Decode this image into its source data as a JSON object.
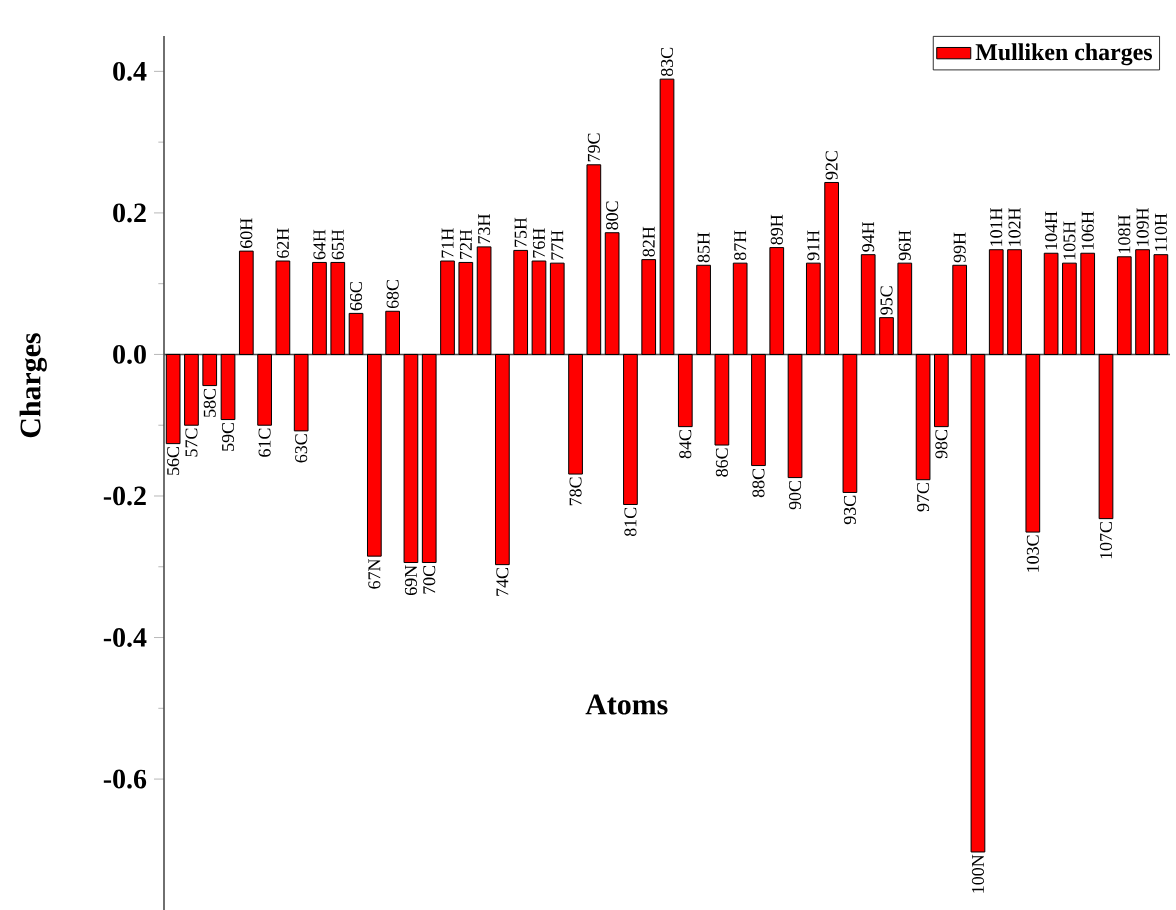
{
  "chart_data": {
    "type": "bar",
    "xlabel": "Atoms",
    "ylabel": "Charges",
    "categories": [
      "56C",
      "57C",
      "58C",
      "59C",
      "60H",
      "61C",
      "62H",
      "63C",
      "64H",
      "65H",
      "66C",
      "67N",
      "68C",
      "69N",
      "70C",
      "71H",
      "72H",
      "73H",
      "74C",
      "75H",
      "76H",
      "77H",
      "78C",
      "79C",
      "80C",
      "81C",
      "82H",
      "83C",
      "84C",
      "85H",
      "86C",
      "87H",
      "88C",
      "89H",
      "90C",
      "91H",
      "92C",
      "93C",
      "94H",
      "95C",
      "96H",
      "97C",
      "98C",
      "99H",
      "100N",
      "101H",
      "102H",
      "103C",
      "104H",
      "105H",
      "106H",
      "107C",
      "108H",
      "109H",
      "110H"
    ],
    "series": [
      {
        "name": "Mulliken charges",
        "color": "#ff0000",
        "values": [
          -0.126,
          -0.1,
          -0.044,
          -0.092,
          0.146,
          -0.1,
          0.132,
          -0.108,
          0.13,
          0.13,
          0.058,
          -0.285,
          0.061,
          -0.294,
          -0.294,
          0.132,
          0.13,
          0.152,
          -0.297,
          0.147,
          0.132,
          0.129,
          -0.169,
          0.268,
          0.172,
          -0.212,
          0.134,
          0.389,
          -0.102,
          0.126,
          -0.128,
          0.129,
          -0.157,
          0.151,
          -0.174,
          0.129,
          0.243,
          -0.195,
          0.141,
          0.052,
          0.129,
          -0.177,
          -0.102,
          0.126,
          -0.703,
          0.148,
          0.148,
          -0.251,
          0.143,
          0.129,
          0.143,
          -0.232,
          0.138,
          0.148,
          0.141
        ]
      }
    ],
    "ylim": [
      -0.785,
      0.45
    ],
    "yticks": [
      -0.6,
      -0.4,
      -0.2,
      {
        "value": 0,
        "label": "0.0"
      },
      0.2,
      0.4
    ],
    "legend": "top right"
  }
}
